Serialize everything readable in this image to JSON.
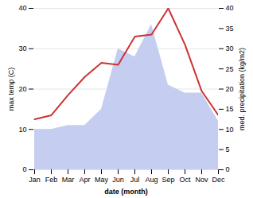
{
  "chart_data": {
    "type": "line",
    "categories": [
      "Jan",
      "Feb",
      "Mar",
      "Apr",
      "May",
      "Jun",
      "Jul",
      "Aug",
      "Sep",
      "Oct",
      "Nov",
      "Dec"
    ],
    "series": [
      {
        "type": "area",
        "axis": "y2",
        "color": "#c5cef0",
        "values": [
          10,
          10,
          11,
          11,
          15,
          30,
          28,
          36,
          21,
          19,
          19,
          12
        ]
      },
      {
        "type": "line",
        "color": "#cc3333",
        "values": [
          12.5,
          13.5,
          18.5,
          23.0,
          26.5,
          26.0,
          33.0,
          33.5,
          40.0,
          31.0,
          19.5,
          13.5
        ]
      }
    ],
    "xlabel": "date (month)",
    "ylabel": "max temp (C)",
    "y2label": "med. precipitation (kg/m2)",
    "ylim": [
      0,
      40
    ],
    "yticks": [
      0,
      10,
      20,
      30,
      40
    ],
    "y2lim": [
      0,
      40
    ],
    "y2ticks": [
      0,
      5,
      10,
      15,
      20,
      25,
      30,
      35,
      40
    ],
    "grid": true
  }
}
